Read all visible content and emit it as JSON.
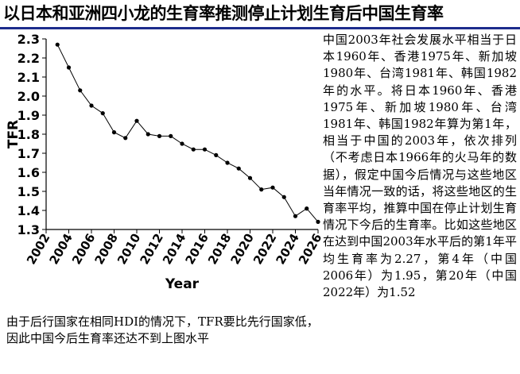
{
  "header": {
    "title": "以日本和亚洲四小龙的生育率推测停止计划生育后中国生育率",
    "rule_color": "#1c2c8c"
  },
  "chart_data": {
    "type": "line",
    "title": "",
    "xlabel": "Year",
    "ylabel": "TFR",
    "xlim": [
      2002,
      2026
    ],
    "ylim": [
      1.3,
      2.3
    ],
    "x_ticks": [
      2002,
      2004,
      2006,
      2008,
      2010,
      2012,
      2014,
      2016,
      2018,
      2020,
      2022,
      2024,
      2026
    ],
    "y_ticks": [
      "2.3",
      "2.2",
      "2.1",
      "2.0",
      "1.9",
      "1.8",
      "1.7",
      "1.6",
      "1.5",
      "1.4",
      "1.3"
    ],
    "grid": false,
    "legend": "none",
    "series": [
      {
        "x": [
          2003,
          2004,
          2005,
          2006,
          2007,
          2008,
          2009,
          2010,
          2011,
          2012,
          2013,
          2014,
          2015,
          2016,
          2017,
          2018,
          2019,
          2020,
          2021,
          2022,
          2023,
          2024,
          2025,
          2026
        ],
        "values": [
          2.27,
          2.15,
          2.03,
          1.95,
          1.91,
          1.81,
          1.78,
          1.87,
          1.8,
          1.79,
          1.79,
          1.75,
          1.72,
          1.72,
          1.69,
          1.65,
          1.62,
          1.57,
          1.51,
          1.52,
          1.47,
          1.37,
          1.41,
          1.34
        ],
        "color": "#000000"
      }
    ]
  },
  "description": {
    "text": "中国2003年社会发展水平相当于日本1960年、香港1975年、新加坡1980年、台湾1981年、韩国1982年的水平。将日本1960年、香港1975年、新加坡1980年、台湾1981年、韩国1982年算为第1年，相当于中国的2003年，依次排列（不考虑日本1966年的火马年的数据），假定中国今后情况与这些地区当年情况一致的话，将这些地区的生育率平均，推算中国在停止计划生育情况下今后的生育率。比如这些地区在达到中国2003年水平后的第1年平均生育率为2.27，第4年（中国2006年）为1.95，第20年（中国2022年）为1.52"
  },
  "note": {
    "text": "由于后行国家在相同HDI的情况下，TFR要比先行国家低，因此中国今后生育率还达不到上图水平"
  }
}
